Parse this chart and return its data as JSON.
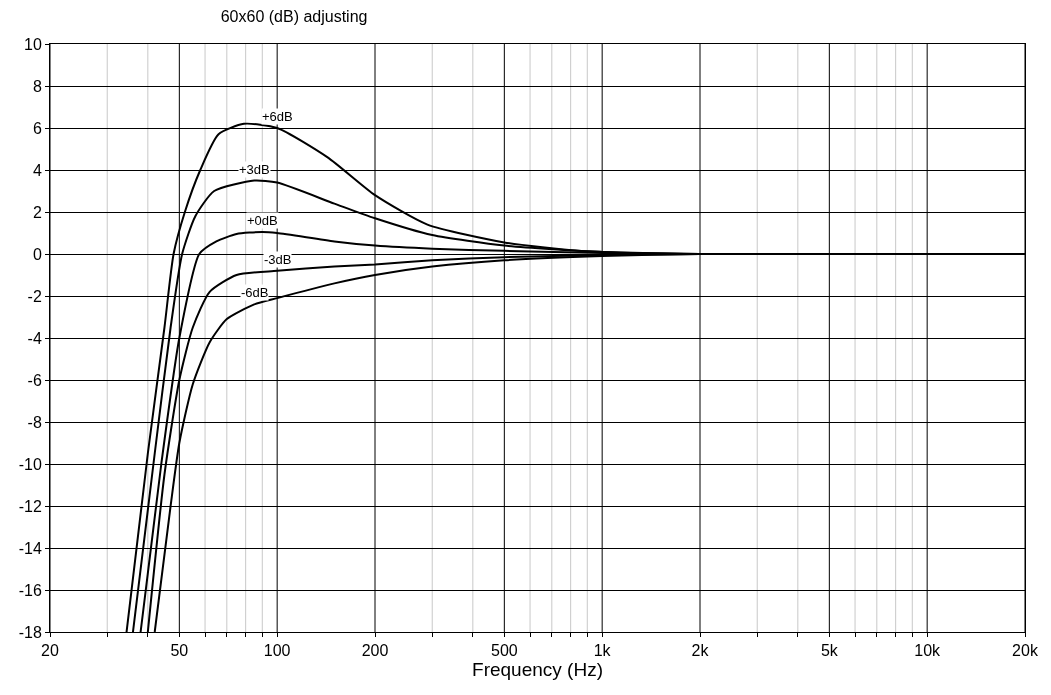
{
  "chart_data": {
    "type": "line",
    "title": "60x60 (dB) adjusting",
    "xlabel": "Frequency (Hz)",
    "log": "x",
    "grid": true,
    "marker": "none",
    "line_style": "solid",
    "xlim": [
      20,
      20000
    ],
    "ylim": [
      -18,
      10
    ],
    "xticks": [
      20,
      {
        "value": 30,
        "label": null
      },
      {
        "value": 40,
        "label": null
      },
      50,
      {
        "value": 60,
        "label": null
      },
      {
        "value": 70,
        "label": null
      },
      {
        "value": 80,
        "label": null
      },
      {
        "value": 90,
        "label": null
      },
      100,
      200,
      {
        "value": 300,
        "label": null
      },
      {
        "value": 400,
        "label": null
      },
      500,
      {
        "value": 600,
        "label": null
      },
      {
        "value": 700,
        "label": null
      },
      {
        "value": 800,
        "label": null
      },
      {
        "value": 900,
        "label": null
      },
      {
        "value": 1000,
        "label": "1k"
      },
      {
        "value": 2000,
        "label": "2k"
      },
      {
        "value": 3000,
        "label": null
      },
      {
        "value": 4000,
        "label": null
      },
      {
        "value": 5000,
        "label": "5k"
      },
      {
        "value": 6000,
        "label": null
      },
      {
        "value": 7000,
        "label": null
      },
      {
        "value": 8000,
        "label": null
      },
      {
        "value": 9000,
        "label": null
      },
      {
        "value": 10000,
        "label": "10k"
      },
      {
        "value": 20000,
        "label": "20k"
      }
    ],
    "yticks": [
      -18,
      -16,
      -14,
      -12,
      -10,
      -8,
      -6,
      -4,
      -2,
      0,
      2,
      4,
      6,
      8,
      10
    ],
    "series": [
      {
        "name": "+6dB",
        "color": "#000000",
        "x": [
          34.4,
          40,
          45,
          48,
          52,
          58,
          66,
          79,
          100,
          143,
          200,
          290,
          500,
          840,
          1000,
          2000,
          5000,
          20000
        ],
        "values": [
          -18,
          -9.5,
          -3.5,
          0,
          2,
          4,
          5.7,
          6.2,
          6,
          4.6,
          2.8,
          1.4,
          0.55,
          0.15,
          0.1,
          0,
          0,
          0
        ]
      },
      {
        "name": "+3dB",
        "color": "#000000",
        "x": [
          36,
          42,
          47,
          51,
          56,
          64,
          85,
          100,
          150,
          200,
          300,
          500,
          1000,
          2000,
          5000,
          20000
        ],
        "values": [
          -18,
          -9.5,
          -3.5,
          0,
          1.8,
          3,
          3.5,
          3.4,
          2.4,
          1.7,
          0.9,
          0.4,
          0.1,
          0,
          0,
          0
        ]
      },
      {
        "name": "+0dB",
        "color": "#000000",
        "x": [
          38,
          44,
          50,
          57.6,
          65,
          75,
          90,
          100,
          150,
          200,
          300,
          500,
          1000,
          2000,
          5000,
          20000
        ],
        "values": [
          -18,
          -10,
          -4,
          0,
          0.6,
          0.95,
          1.05,
          1,
          0.6,
          0.4,
          0.25,
          0.15,
          0.05,
          0,
          0,
          0
        ]
      },
      {
        "name": "-3dB",
        "color": "#000000",
        "x": [
          40,
          45,
          50,
          55,
          62,
          75,
          100,
          150,
          200,
          300,
          500,
          1000,
          2000,
          5000,
          20000
        ],
        "values": [
          -18,
          -10.5,
          -6,
          -3.5,
          -1.8,
          -1,
          -0.8,
          -0.6,
          -0.5,
          -0.3,
          -0.15,
          -0.05,
          0,
          0,
          0
        ]
      },
      {
        "name": "-6dB",
        "color": "#000000",
        "x": [
          42,
          47,
          50,
          55,
          62,
          70,
          85,
          100,
          150,
          200,
          300,
          500,
          1000,
          2000,
          5000,
          20000
        ],
        "values": [
          -18,
          -12,
          -9,
          -6.2,
          -4.2,
          -3.1,
          -2.4,
          -2.1,
          -1.4,
          -1,
          -0.6,
          -0.3,
          -0.1,
          0,
          0,
          0
        ]
      }
    ]
  }
}
